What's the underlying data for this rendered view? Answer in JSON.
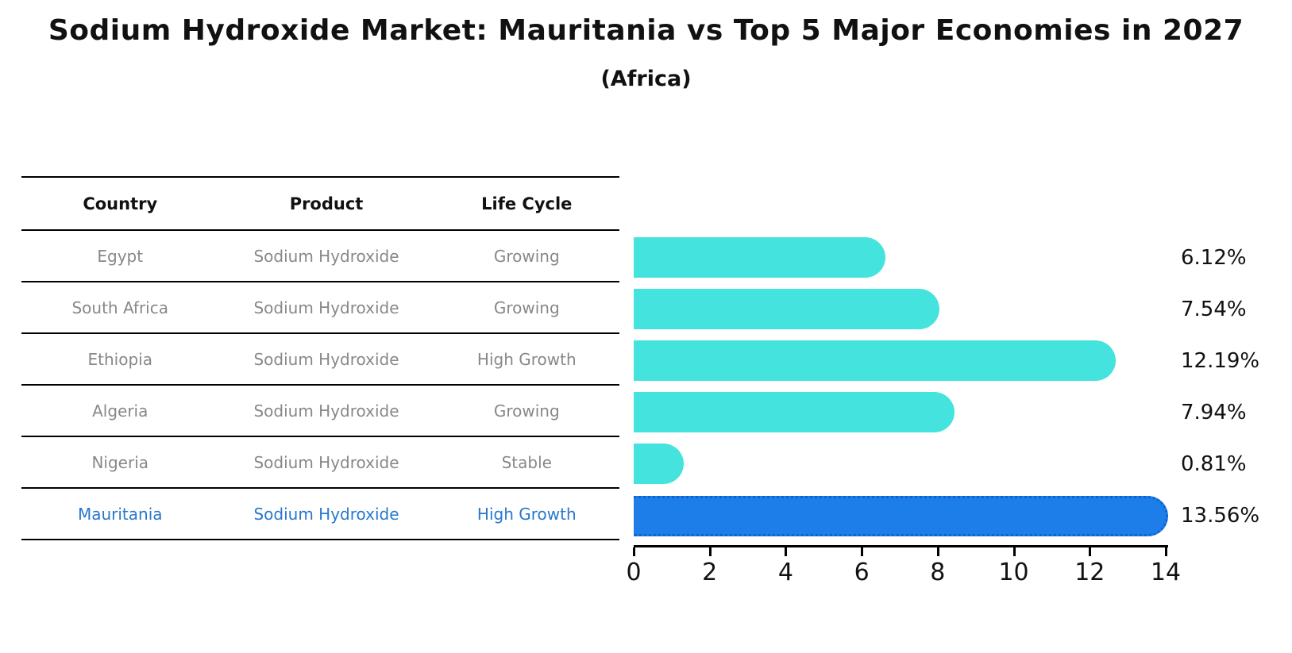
{
  "title": "Sodium Hydroxide Market: Mauritania vs Top 5 Major Economies in 2027",
  "subtitle": "(Africa)",
  "table": {
    "headers": [
      "Country",
      "Product",
      "Life Cycle"
    ],
    "rows": [
      {
        "country": "Egypt",
        "product": "Sodium Hydroxide",
        "life_cycle": "Growing"
      },
      {
        "country": "South Africa",
        "product": "Sodium Hydroxide",
        "life_cycle": "Growing"
      },
      {
        "country": "Ethiopia",
        "product": "Sodium Hydroxide",
        "life_cycle": "High Growth"
      },
      {
        "country": "Algeria",
        "product": "Sodium Hydroxide",
        "life_cycle": "Growing"
      },
      {
        "country": "Nigeria",
        "product": "Sodium Hydroxide",
        "life_cycle": "Stable"
      },
      {
        "country": "Mauritania",
        "product": "Sodium Hydroxide",
        "life_cycle": "High Growth"
      }
    ],
    "highlighted_row": "Mauritania"
  },
  "chart_data": {
    "type": "bar",
    "orientation": "horizontal",
    "title": "Sodium Hydroxide Market: Mauritania vs Top 5 Major Economies in 2027",
    "subtitle": "(Africa)",
    "categories": [
      "Egypt",
      "South Africa",
      "Ethiopia",
      "Algeria",
      "Nigeria",
      "Mauritania"
    ],
    "values": [
      6.12,
      7.54,
      12.19,
      7.94,
      0.81,
      13.56
    ],
    "value_labels": [
      "6.12%",
      "7.54%",
      "12.19%",
      "7.94%",
      "0.81%",
      "13.56%"
    ],
    "highlight_category": "Mauritania",
    "xlim": [
      0,
      14
    ],
    "x_ticks": [
      0,
      2,
      4,
      6,
      8,
      10,
      12,
      14
    ],
    "grid": false,
    "legend": false,
    "colors": {
      "bar_default": "#45e3dd",
      "bar_highlight": "#1d7de9",
      "bar_highlight_border": "#0d63d0",
      "row_text": "#888888",
      "highlight_text": "#2878cd",
      "axis": "#000000"
    }
  }
}
